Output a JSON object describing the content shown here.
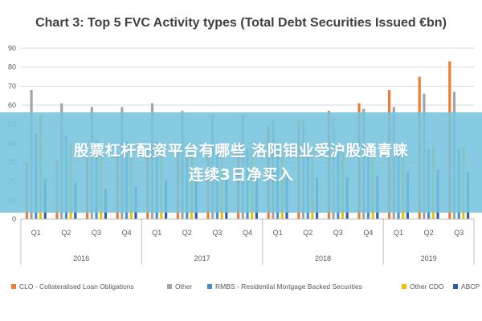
{
  "chart_data": {
    "type": "bar",
    "title": "Chart 3: Top 5 FVC Activity types (Total Debt Securities Issued €bn)",
    "ylim": [
      0,
      90
    ],
    "yticks": [
      0,
      10,
      20,
      30,
      40,
      50,
      60,
      70,
      80,
      90
    ],
    "grid": true,
    "legend_position": "bottom",
    "categories": [
      "Q1",
      "Q2",
      "Q3",
      "Q4",
      "Q1",
      "Q2",
      "Q3",
      "Q4",
      "Q1",
      "Q2",
      "Q3",
      "Q4",
      "Q1",
      "Q2",
      "Q3"
    ],
    "year_groups": [
      {
        "label": "2016",
        "count": 4
      },
      {
        "label": "2017",
        "count": 4
      },
      {
        "label": "2018",
        "count": 4
      },
      {
        "label": "2019",
        "count": 3
      }
    ],
    "series": [
      {
        "name": "CLO - Collateralised Loan Obligations",
        "color": "#ed7d31",
        "values": [
          30,
          31,
          33,
          35,
          36,
          37,
          38,
          39,
          49,
          52,
          57,
          61,
          68,
          75,
          83
        ]
      },
      {
        "name": "Other",
        "color": "#a5a5a5",
        "values": [
          68,
          61,
          59,
          59,
          61,
          57,
          55,
          55,
          52,
          52,
          53,
          58,
          59,
          66,
          67
        ]
      },
      {
        "name": "RMBS - Residential Mortgage Backed Securities",
        "color": "#4a90c8",
        "values": [
          45,
          44,
          42,
          41,
          41,
          39,
          37,
          37,
          38,
          38,
          37,
          36,
          37,
          37,
          37
        ]
      },
      {
        "name": "Other CDO",
        "color": "#f0c000",
        "values": [
          55,
          40,
          38,
          37,
          37,
          36,
          36,
          36,
          36,
          36,
          37,
          38,
          38,
          38,
          38
        ]
      },
      {
        "name": "ABCP",
        "color": "#2f5fa8",
        "values": [
          21,
          19,
          16,
          17,
          21,
          21,
          22,
          22,
          22,
          22,
          22,
          23,
          25,
          26,
          25
        ]
      }
    ]
  },
  "banner": {
    "line1": "股票杠杆配资平台有哪些 洛阳钼业受沪股通青睐",
    "line2": "连续3日净买入"
  }
}
